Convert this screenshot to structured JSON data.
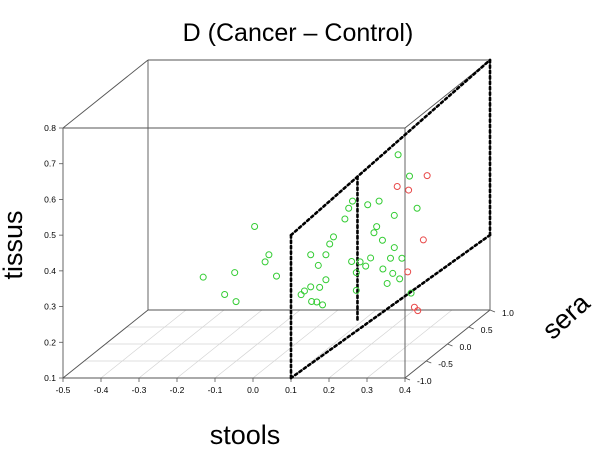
{
  "chart_data": {
    "type": "scatter",
    "title": "D (Cancer – Control)",
    "xlabel": "stools",
    "ylabel": "sera",
    "zlabel": "tissus",
    "xlim": [
      -0.5,
      0.4
    ],
    "ylim": [
      -1.0,
      1.0
    ],
    "zlim": [
      0.1,
      0.8
    ],
    "x_ticks": [
      "-0.5",
      "-0.4",
      "-0.3",
      "-0.2",
      "-0.1",
      "0.0",
      "0.1",
      "0.2",
      "0.3",
      "0.4"
    ],
    "y_ticks": [
      "-1.0",
      "-0.5",
      "0.0",
      "0.5",
      "1.0"
    ],
    "z_ticks": [
      "0.1",
      "0.2",
      "0.3",
      "0.4",
      "0.5",
      "0.6",
      "0.7",
      "0.8"
    ],
    "series": [
      {
        "color": "#33cc33",
        "values": [
          [
            -0.31,
            0.6,
            0.23
          ],
          [
            -0.22,
            0.3,
            0.21
          ],
          [
            -0.19,
            0.3,
            0.19
          ],
          [
            -0.16,
            0.0,
            0.3
          ],
          [
            -0.13,
            0.2,
            0.41
          ],
          [
            -0.08,
            0.0,
            0.33
          ],
          [
            -0.07,
            0.0,
            0.35
          ],
          [
            -0.05,
            0.0,
            0.29
          ],
          [
            -0.03,
            0.4,
            0.2
          ],
          [
            -0.01,
            0.3,
            0.22
          ],
          [
            0.0,
            0.5,
            0.17
          ],
          [
            0.02,
            0.2,
            0.2
          ],
          [
            0.03,
            0.3,
            0.23
          ],
          [
            0.04,
            0.0,
            0.26
          ],
          [
            0.04,
            0.0,
            0.35
          ],
          [
            0.06,
            0.1,
            0.2
          ],
          [
            0.06,
            0.0,
            0.32
          ],
          [
            0.08,
            0.0,
            0.28
          ],
          [
            0.08,
            0.0,
            0.35
          ],
          [
            0.09,
            0.0,
            0.38
          ],
          [
            0.1,
            0.0,
            0.4
          ],
          [
            0.13,
            0.0,
            0.45
          ],
          [
            0.14,
            0.4,
            0.28
          ],
          [
            0.14,
            0.0,
            0.48
          ],
          [
            0.15,
            0.0,
            0.5
          ],
          [
            0.16,
            0.0,
            0.25
          ],
          [
            0.16,
            0.0,
            0.3
          ],
          [
            0.17,
            -0.2,
            0.35
          ],
          [
            0.17,
            0.0,
            0.33
          ],
          [
            0.18,
            0.3,
            0.4
          ],
          [
            0.19,
            0.0,
            0.49
          ],
          [
            0.2,
            0.5,
            0.25
          ],
          [
            0.22,
            -0.2,
            0.36
          ],
          [
            0.22,
            0.0,
            0.5
          ],
          [
            0.23,
            0.1,
            0.26
          ],
          [
            0.23,
            0.0,
            0.31
          ],
          [
            0.24,
            -0.3,
            0.44
          ],
          [
            0.24,
            -0.1,
            0.4
          ],
          [
            0.25,
            0.0,
            0.34
          ],
          [
            0.26,
            0.0,
            0.37
          ],
          [
            0.26,
            0.0,
            0.46
          ],
          [
            0.27,
            0.0,
            0.63
          ],
          [
            0.28,
            0.0,
            0.34
          ],
          [
            0.3,
            0.0,
            0.57
          ],
          [
            0.32,
            0.0,
            0.48
          ],
          [
            0.33,
            -0.5,
            0.33
          ],
          [
            0.36,
            -0.5,
            0.29
          ]
        ]
      },
      {
        "color": "#e84848",
        "values": [
          [
            0.29,
            -0.2,
            0.56
          ],
          [
            0.32,
            -0.2,
            0.55
          ],
          [
            0.34,
            -0.4,
            0.34
          ],
          [
            0.37,
            -0.3,
            0.42
          ],
          [
            0.38,
            -0.3,
            0.6
          ],
          [
            0.38,
            -0.6,
            0.26
          ],
          [
            0.4,
            -0.7,
            0.26
          ]
        ]
      }
    ],
    "annotations": [
      {
        "type": "dotted-plane",
        "vertices": [
          [
            0.1,
            -1.0,
            0.1
          ],
          [
            0.1,
            -1.0,
            0.5
          ],
          [
            0.4,
            1.0,
            0.8
          ],
          [
            0.4,
            1.0,
            0.31
          ]
        ]
      },
      {
        "type": "dotted-line",
        "vertices": [
          [
            0.2,
            -0.33,
            0.2
          ],
          [
            0.2,
            -0.33,
            0.6
          ]
        ]
      }
    ],
    "grid": true
  }
}
